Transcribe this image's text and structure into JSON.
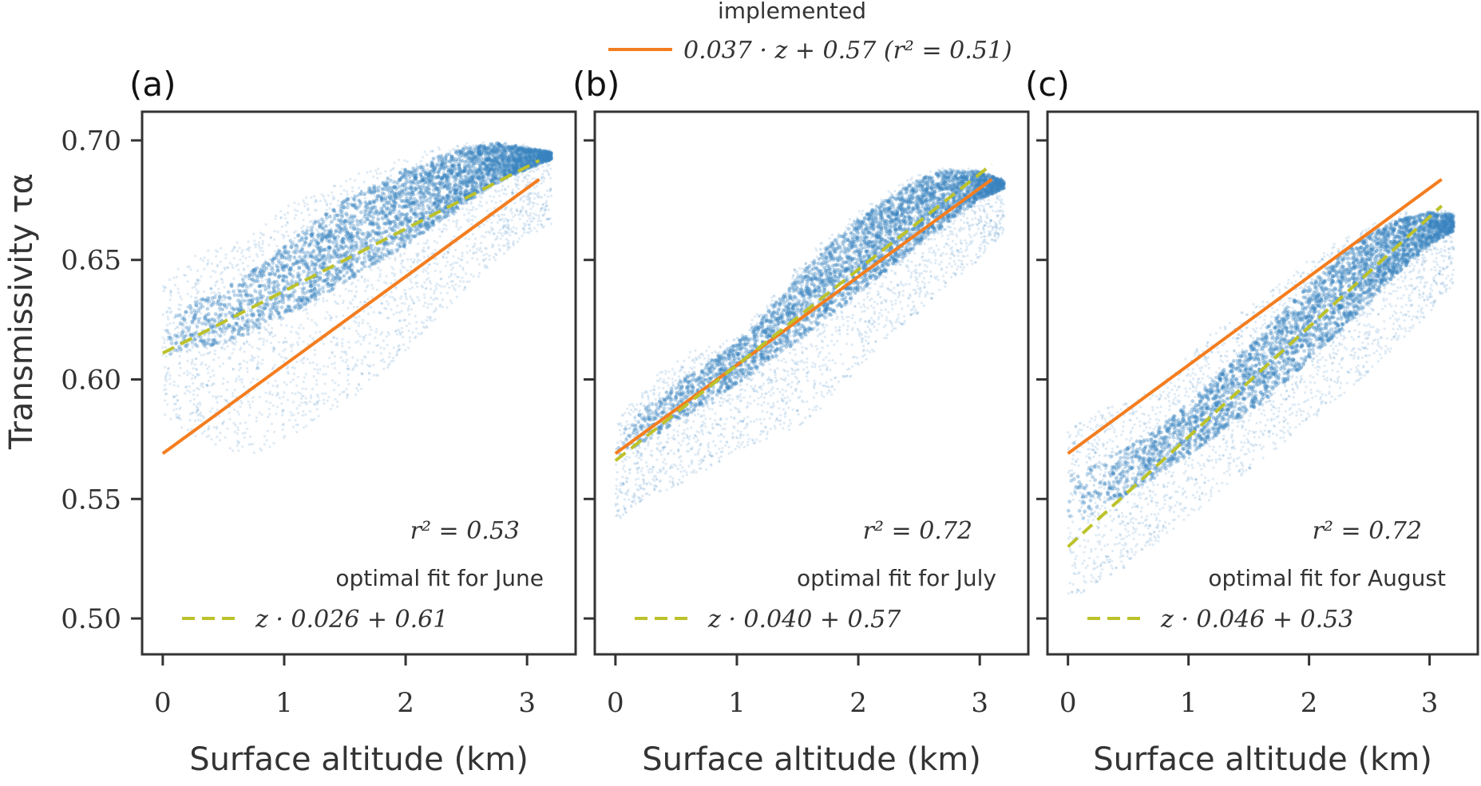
{
  "figure": {
    "legend_title": "implemented",
    "implemented_label": "0.037 · z + 0.57 (r² = 0.51)",
    "y_axis_label": "Transmissivity τα",
    "x_axis_label": "Surface altitude (km)"
  },
  "colors": {
    "points": "#3a85c0",
    "implemented": "#f47d1f",
    "optimal": "#bcc22a",
    "axes": "#333333"
  },
  "chart_data": [
    {
      "type": "scatter",
      "panel": "(a)",
      "month": "June",
      "xlabel": "Surface altitude (km)",
      "ylabel": "Transmissivity τα",
      "xlim": [
        -0.17,
        3.4
      ],
      "ylim": [
        0.485,
        0.712
      ],
      "xticks": [
        0,
        1,
        2,
        3
      ],
      "yticks": [
        0.5,
        0.55,
        0.6,
        0.65,
        0.7
      ],
      "ytick_labels": [
        "0.50",
        "0.55",
        "0.60",
        "0.65",
        "0.70"
      ],
      "r2_text": "r² = 0.53",
      "legend_title": "optimal fit for June",
      "optimal_label": "z · 0.026 + 0.61",
      "implemented_line": {
        "slope": 0.037,
        "intercept": 0.569,
        "x": [
          0,
          3.1
        ]
      },
      "optimal_line": {
        "slope": 0.026,
        "intercept": 0.611,
        "x": [
          0,
          3.1
        ]
      },
      "scatter_envelope": {
        "x": [
          0.0,
          0.25,
          0.5,
          0.75,
          1.0,
          1.25,
          1.5,
          1.75,
          2.0,
          2.25,
          2.5,
          2.75,
          3.0,
          3.2
        ],
        "upper": [
          0.641,
          0.652,
          0.656,
          0.661,
          0.672,
          0.678,
          0.684,
          0.689,
          0.693,
          0.697,
          0.699,
          0.7,
          0.698,
          0.696
        ],
        "lower": [
          0.585,
          0.575,
          0.57,
          0.568,
          0.575,
          0.582,
          0.59,
          0.6,
          0.612,
          0.625,
          0.638,
          0.65,
          0.66,
          0.665
        ],
        "core_upper": [
          0.625,
          0.632,
          0.638,
          0.646,
          0.656,
          0.666,
          0.675,
          0.682,
          0.688,
          0.693,
          0.697,
          0.699,
          0.697,
          0.695
        ],
        "core_lower": [
          0.61,
          0.612,
          0.615,
          0.62,
          0.626,
          0.633,
          0.64,
          0.648,
          0.656,
          0.665,
          0.674,
          0.682,
          0.688,
          0.692
        ]
      }
    },
    {
      "type": "scatter",
      "panel": "(b)",
      "month": "July",
      "xlabel": "Surface altitude (km)",
      "ylabel": "",
      "xlim": [
        -0.17,
        3.4
      ],
      "ylim": [
        0.485,
        0.712
      ],
      "xticks": [
        0,
        1,
        2,
        3
      ],
      "yticks": [
        0.5,
        0.55,
        0.6,
        0.65,
        0.7
      ],
      "r2_text": "r² = 0.72",
      "legend_title": "optimal fit for July",
      "optimal_label": "z · 0.040 + 0.57",
      "implemented_line": {
        "slope": 0.037,
        "intercept": 0.569,
        "x": [
          0,
          3.1
        ]
      },
      "optimal_line": {
        "slope": 0.04,
        "intercept": 0.566,
        "x": [
          0,
          3.1
        ]
      },
      "scatter_envelope": {
        "x": [
          0.0,
          0.25,
          0.5,
          0.75,
          1.0,
          1.25,
          1.5,
          1.75,
          2.0,
          2.25,
          2.5,
          2.75,
          3.0,
          3.2
        ],
        "upper": [
          0.582,
          0.598,
          0.61,
          0.614,
          0.618,
          0.632,
          0.648,
          0.66,
          0.67,
          0.679,
          0.686,
          0.689,
          0.688,
          0.684
        ],
        "lower": [
          0.54,
          0.55,
          0.555,
          0.562,
          0.57,
          0.575,
          0.58,
          0.59,
          0.605,
          0.618,
          0.628,
          0.64,
          0.65,
          0.662
        ],
        "core_upper": [
          0.576,
          0.588,
          0.598,
          0.607,
          0.615,
          0.628,
          0.643,
          0.656,
          0.667,
          0.676,
          0.684,
          0.688,
          0.687,
          0.683
        ],
        "core_lower": [
          0.566,
          0.574,
          0.582,
          0.59,
          0.598,
          0.607,
          0.616,
          0.626,
          0.636,
          0.646,
          0.656,
          0.666,
          0.675,
          0.68
        ]
      }
    },
    {
      "type": "scatter",
      "panel": "(c)",
      "month": "August",
      "xlabel": "Surface altitude (km)",
      "ylabel": "",
      "xlim": [
        -0.17,
        3.4
      ],
      "ylim": [
        0.485,
        0.712
      ],
      "xticks": [
        0,
        1,
        2,
        3
      ],
      "yticks": [
        0.5,
        0.55,
        0.6,
        0.65,
        0.7
      ],
      "r2_text": "r² = 0.72",
      "legend_title": "optimal fit for August",
      "optimal_label": "z · 0.046 + 0.53",
      "implemented_line": {
        "slope": 0.037,
        "intercept": 0.569,
        "x": [
          0,
          3.1
        ]
      },
      "optimal_line": {
        "slope": 0.046,
        "intercept": 0.53,
        "x": [
          0,
          3.1
        ]
      },
      "scatter_envelope": {
        "x": [
          0.0,
          0.25,
          0.5,
          0.75,
          1.0,
          1.25,
          1.5,
          1.75,
          2.0,
          2.25,
          2.5,
          2.75,
          3.0,
          3.2
        ],
        "upper": [
          0.578,
          0.588,
          0.59,
          0.598,
          0.61,
          0.622,
          0.63,
          0.64,
          0.65,
          0.658,
          0.665,
          0.67,
          0.672,
          0.67
        ],
        "lower": [
          0.505,
          0.515,
          0.522,
          0.532,
          0.542,
          0.552,
          0.562,
          0.572,
          0.582,
          0.592,
          0.602,
          0.615,
          0.628,
          0.64
        ],
        "core_upper": [
          0.56,
          0.566,
          0.572,
          0.58,
          0.59,
          0.602,
          0.614,
          0.627,
          0.64,
          0.652,
          0.661,
          0.667,
          0.67,
          0.669
        ],
        "core_lower": [
          0.538,
          0.545,
          0.552,
          0.56,
          0.568,
          0.577,
          0.586,
          0.596,
          0.608,
          0.62,
          0.632,
          0.645,
          0.656,
          0.662
        ]
      }
    }
  ]
}
